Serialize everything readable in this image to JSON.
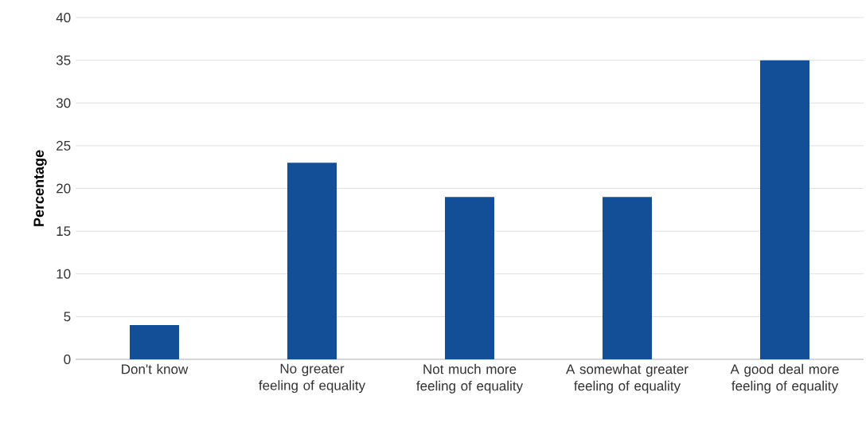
{
  "chart_data": {
    "type": "bar",
    "ylabel": "Percentage",
    "categories": [
      "Don't know",
      "No greater feeling of equality",
      "Not much more feeling of equality",
      "A somewhat greater feeling of equality",
      "A good deal more feeling of equality"
    ],
    "values": [
      4,
      23,
      19,
      19,
      35
    ],
    "color": "#134f96",
    "ylim": [
      0,
      40
    ],
    "yticks": [
      0,
      5,
      10,
      15,
      20,
      25,
      30,
      35,
      40
    ],
    "grid": "y"
  }
}
